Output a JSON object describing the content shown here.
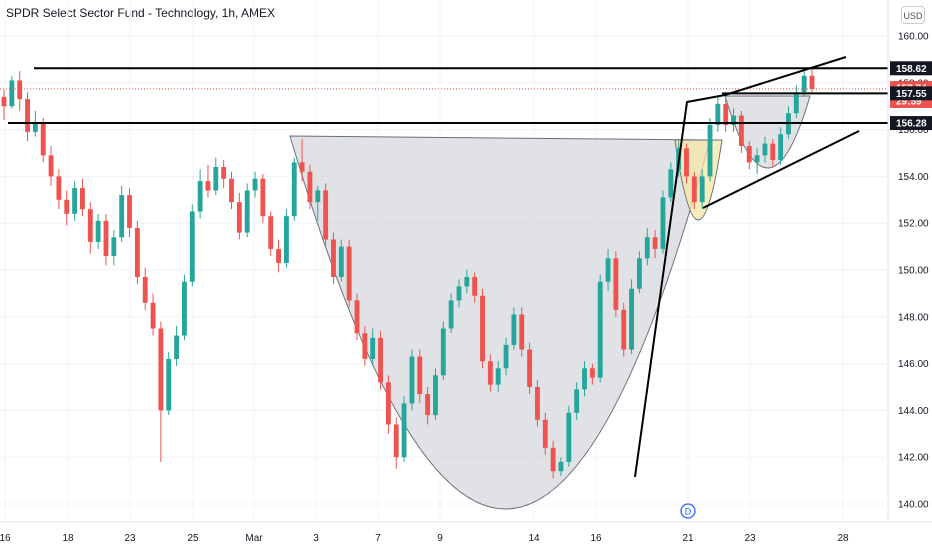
{
  "header": {
    "title": "SPDR Select Sector Fund - Technology, 1h, AMEX",
    "currency": "USD"
  },
  "chart_data": {
    "type": "candlestick",
    "title": "SPDR Select Sector Fund - Technology, 1h, AMEX",
    "ylim": [
      139.3,
      161.3
    ],
    "y_ticks": [
      140,
      142,
      144,
      146,
      148,
      150,
      152,
      154,
      156,
      158,
      160
    ],
    "y_tick_labels": [
      "140.00",
      "142.00",
      "144.00",
      "146.00",
      "148.00",
      "150.00",
      "152.00",
      "154.00",
      "156.00",
      "158.00",
      "160.00"
    ],
    "x_tick_labels": [
      "16",
      "18",
      "23",
      "25",
      "Mar",
      "3",
      "7",
      "9",
      "14",
      "16",
      "21",
      "23",
      "28"
    ],
    "price_tags": [
      {
        "label": "158.62",
        "value": 158.62,
        "style": "dark"
      },
      {
        "label": "157.74",
        "value": 157.74,
        "style": "red"
      },
      {
        "label": "29:59",
        "value": 157.3,
        "style": "red-sub"
      },
      {
        "label": "157.55",
        "value": 157.55,
        "style": "dark"
      },
      {
        "label": "156.28",
        "value": 156.28,
        "style": "dark"
      }
    ],
    "horizontal_levels": [
      158.62,
      157.55,
      156.28
    ],
    "current_price": 157.74,
    "event_marker": "D",
    "colors": {
      "up": "#26a69a",
      "down": "#ef5350",
      "pattern_fill": "#c8cad0",
      "handle_fill": "#f4e6a6",
      "lines": "#000000"
    },
    "candles": [
      [
        157.4,
        157.7,
        156.4,
        157.0
      ],
      [
        157.0,
        158.3,
        156.9,
        158.1
      ],
      [
        158.1,
        158.5,
        156.8,
        157.3
      ],
      [
        157.3,
        157.6,
        155.5,
        155.9
      ],
      [
        155.9,
        156.8,
        155.7,
        156.3
      ],
      [
        156.3,
        156.5,
        154.6,
        154.9
      ],
      [
        154.9,
        155.3,
        153.6,
        154.0
      ],
      [
        154.0,
        154.3,
        152.6,
        153.0
      ],
      [
        153.0,
        153.4,
        151.9,
        152.4
      ],
      [
        152.4,
        153.8,
        152.1,
        153.5
      ],
      [
        153.5,
        153.9,
        152.3,
        152.6
      ],
      [
        152.6,
        152.9,
        150.7,
        151.2
      ],
      [
        151.2,
        152.4,
        150.9,
        152.1
      ],
      [
        152.1,
        152.4,
        150.2,
        150.6
      ],
      [
        150.6,
        151.7,
        150.2,
        151.4
      ],
      [
        151.4,
        153.6,
        151.2,
        153.2
      ],
      [
        153.2,
        153.5,
        151.4,
        151.8
      ],
      [
        151.8,
        152.1,
        149.4,
        149.7
      ],
      [
        149.7,
        150.1,
        148.3,
        148.6
      ],
      [
        148.6,
        149.0,
        147.2,
        147.5
      ],
      [
        147.5,
        147.8,
        141.8,
        144.0
      ],
      [
        144.0,
        146.5,
        143.8,
        146.2
      ],
      [
        146.2,
        147.6,
        145.9,
        147.2
      ],
      [
        147.2,
        149.8,
        147.0,
        149.5
      ],
      [
        149.5,
        152.8,
        149.3,
        152.5
      ],
      [
        152.5,
        154.3,
        152.2,
        153.8
      ],
      [
        153.8,
        154.5,
        153.1,
        153.4
      ],
      [
        153.4,
        154.8,
        153.2,
        154.4
      ],
      [
        154.4,
        154.7,
        153.5,
        153.9
      ],
      [
        153.9,
        154.2,
        152.6,
        152.9
      ],
      [
        152.9,
        153.3,
        151.3,
        151.6
      ],
      [
        151.6,
        153.7,
        151.4,
        153.4
      ],
      [
        153.4,
        154.2,
        153.1,
        153.9
      ],
      [
        153.9,
        154.1,
        152.0,
        152.3
      ],
      [
        152.3,
        152.5,
        150.6,
        150.9
      ],
      [
        150.9,
        151.3,
        149.9,
        150.3
      ],
      [
        150.3,
        152.6,
        150.1,
        152.3
      ],
      [
        152.3,
        154.8,
        152.1,
        154.6
      ],
      [
        154.6,
        155.6,
        153.8,
        154.2
      ],
      [
        154.2,
        154.5,
        152.6,
        152.9
      ],
      [
        152.9,
        153.6,
        152.1,
        153.4
      ],
      [
        153.4,
        153.7,
        151.0,
        151.3
      ],
      [
        151.3,
        151.6,
        149.4,
        149.7
      ],
      [
        149.7,
        151.3,
        149.5,
        151.0
      ],
      [
        151.0,
        151.3,
        148.4,
        148.7
      ],
      [
        148.7,
        149.0,
        147.0,
        147.3
      ],
      [
        147.3,
        147.6,
        145.9,
        146.2
      ],
      [
        146.2,
        147.5,
        145.9,
        147.1
      ],
      [
        147.1,
        147.4,
        144.9,
        145.2
      ],
      [
        145.2,
        145.5,
        143.0,
        143.4
      ],
      [
        143.4,
        143.7,
        141.5,
        142.0
      ],
      [
        142.0,
        144.6,
        141.8,
        144.3
      ],
      [
        144.3,
        146.6,
        144.0,
        146.3
      ],
      [
        146.3,
        146.6,
        144.3,
        144.7
      ],
      [
        144.7,
        145.0,
        143.4,
        143.8
      ],
      [
        143.8,
        145.8,
        143.6,
        145.5
      ],
      [
        145.5,
        147.8,
        145.3,
        147.5
      ],
      [
        147.5,
        149.0,
        147.3,
        148.7
      ],
      [
        148.7,
        149.6,
        148.4,
        149.3
      ],
      [
        149.3,
        150.0,
        149.0,
        149.7
      ],
      [
        149.7,
        149.9,
        148.6,
        148.9
      ],
      [
        148.9,
        149.2,
        145.8,
        146.1
      ],
      [
        146.1,
        146.4,
        144.8,
        145.1
      ],
      [
        145.1,
        146.1,
        144.8,
        145.8
      ],
      [
        145.8,
        147.1,
        145.5,
        146.8
      ],
      [
        146.8,
        148.4,
        146.6,
        148.1
      ],
      [
        148.1,
        148.4,
        146.3,
        146.6
      ],
      [
        146.6,
        146.9,
        144.7,
        145.0
      ],
      [
        145.0,
        145.3,
        143.3,
        143.6
      ],
      [
        143.6,
        143.9,
        142.1,
        142.4
      ],
      [
        142.4,
        142.7,
        141.1,
        141.4
      ],
      [
        141.4,
        142.0,
        141.2,
        141.8
      ],
      [
        141.8,
        144.2,
        141.6,
        143.9
      ],
      [
        143.9,
        145.2,
        143.6,
        144.9
      ],
      [
        144.9,
        146.1,
        144.6,
        145.8
      ],
      [
        145.8,
        146.0,
        145.1,
        145.4
      ],
      [
        145.4,
        149.8,
        145.2,
        149.5
      ],
      [
        149.5,
        150.9,
        149.1,
        150.5
      ],
      [
        150.5,
        150.8,
        148.0,
        148.3
      ],
      [
        148.3,
        148.6,
        146.3,
        146.6
      ],
      [
        146.6,
        149.6,
        146.4,
        149.2
      ],
      [
        149.2,
        150.8,
        149.0,
        150.5
      ],
      [
        150.5,
        151.8,
        150.2,
        151.4
      ],
      [
        151.4,
        151.7,
        150.5,
        150.9
      ],
      [
        150.9,
        153.4,
        150.7,
        153.1
      ],
      [
        153.1,
        154.6,
        152.9,
        154.3
      ],
      [
        154.3,
        155.5,
        154.0,
        155.2
      ],
      [
        155.2,
        155.4,
        153.7,
        154.0
      ],
      [
        154.0,
        154.2,
        152.6,
        152.9
      ],
      [
        152.9,
        154.3,
        152.6,
        154.0
      ],
      [
        154.0,
        156.5,
        153.8,
        156.2
      ],
      [
        156.2,
        157.4,
        155.9,
        157.1
      ],
      [
        157.1,
        157.3,
        155.9,
        156.2
      ],
      [
        156.2,
        156.9,
        155.9,
        156.6
      ],
      [
        156.6,
        156.8,
        155.0,
        155.3
      ],
      [
        155.3,
        155.5,
        154.3,
        154.6
      ],
      [
        154.6,
        155.2,
        154.1,
        154.9
      ],
      [
        154.9,
        155.7,
        154.6,
        155.4
      ],
      [
        155.4,
        155.6,
        154.4,
        154.7
      ],
      [
        154.7,
        156.1,
        154.5,
        155.8
      ],
      [
        155.8,
        157.0,
        155.6,
        156.7
      ],
      [
        156.7,
        157.9,
        156.5,
        157.6
      ],
      [
        157.6,
        158.6,
        157.4,
        158.3
      ],
      [
        158.3,
        158.6,
        157.5,
        157.74
      ]
    ]
  }
}
